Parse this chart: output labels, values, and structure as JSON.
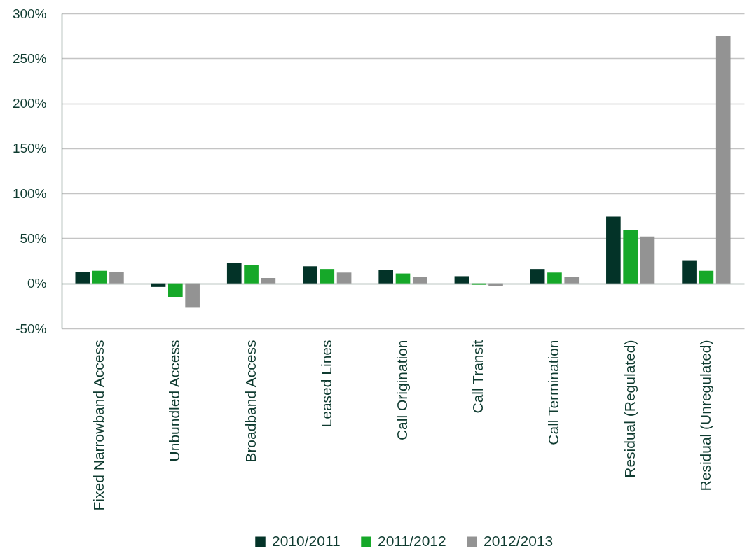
{
  "chart_data": {
    "type": "bar",
    "categories": [
      "Fixed Narrowband Access",
      "Unbundled Access",
      "Broadband Access",
      "Leased Lines",
      "Call Origination",
      "Call Transit",
      "Call Termination",
      "Residual (Regulated)",
      "Residual (Unregulated)"
    ],
    "series": [
      {
        "name": "2010/2011",
        "color": "#033328",
        "values": [
          13,
          -4,
          23,
          19,
          15,
          8,
          16,
          74,
          25
        ]
      },
      {
        "name": "2011/2012",
        "color": "#16a829",
        "values": [
          14,
          -15,
          20,
          16,
          11,
          -1.5,
          12,
          59,
          14
        ]
      },
      {
        "name": "2012/2013",
        "color": "#939393",
        "values": [
          13,
          -27,
          6,
          12,
          7,
          -3,
          7.5,
          52,
          275
        ]
      }
    ],
    "ylim": [
      -50,
      300
    ],
    "yticks": [
      {
        "value": -50,
        "label": "-50%"
      },
      {
        "value": 0,
        "label": "0%"
      },
      {
        "value": 50,
        "label": "50%"
      },
      {
        "value": 100,
        "label": "100%"
      },
      {
        "value": 150,
        "label": "150%"
      },
      {
        "value": 200,
        "label": "200%"
      },
      {
        "value": 250,
        "label": "250%"
      },
      {
        "value": 300,
        "label": "300%"
      }
    ],
    "grid": "y",
    "legend": "bottom"
  }
}
